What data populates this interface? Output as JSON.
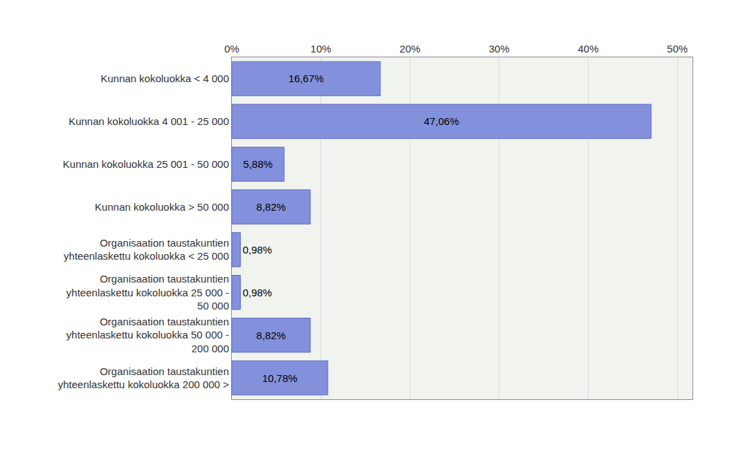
{
  "chart_data": {
    "type": "bar",
    "orientation": "horizontal",
    "categories": [
      "Kunnan kokoluokka < 4 000",
      "Kunnan kokoluokka 4 001 - 25 000",
      "Kunnan kokoluokka 25 001 - 50 000",
      "Kunnan kokoluokka > 50 000",
      "Organisaation taustakuntien yhteenlaskettu kokoluokka < 25 000",
      "Organisaation taustakuntien yhteenlaskettu kokoluokka 25 000 - 50 000",
      "Organisaation taustakuntien yhteenlaskettu kokoluokka 50 000 - 200 000",
      "Organisaation taustakuntien yhteenlaskettu kokoluokka 200 000 >"
    ],
    "values": [
      16.67,
      47.06,
      5.88,
      8.82,
      0.98,
      0.98,
      8.82,
      10.78
    ],
    "value_labels": [
      "16,67%",
      "47,06%",
      "5,88%",
      "8,82%",
      "0,98%",
      "0,98%",
      "8,82%",
      "10,78%"
    ],
    "data_labels": true,
    "color": "#8391dc",
    "xlim": [
      0,
      51.7
    ],
    "xticks": [
      {
        "value": 0,
        "label": "0%"
      },
      {
        "value": 10,
        "label": "10%"
      },
      {
        "value": 20,
        "label": "20%"
      },
      {
        "value": 30,
        "label": "30%"
      },
      {
        "value": 40,
        "label": "40%"
      },
      {
        "value": 50,
        "label": "50%"
      }
    ],
    "grid": true
  }
}
